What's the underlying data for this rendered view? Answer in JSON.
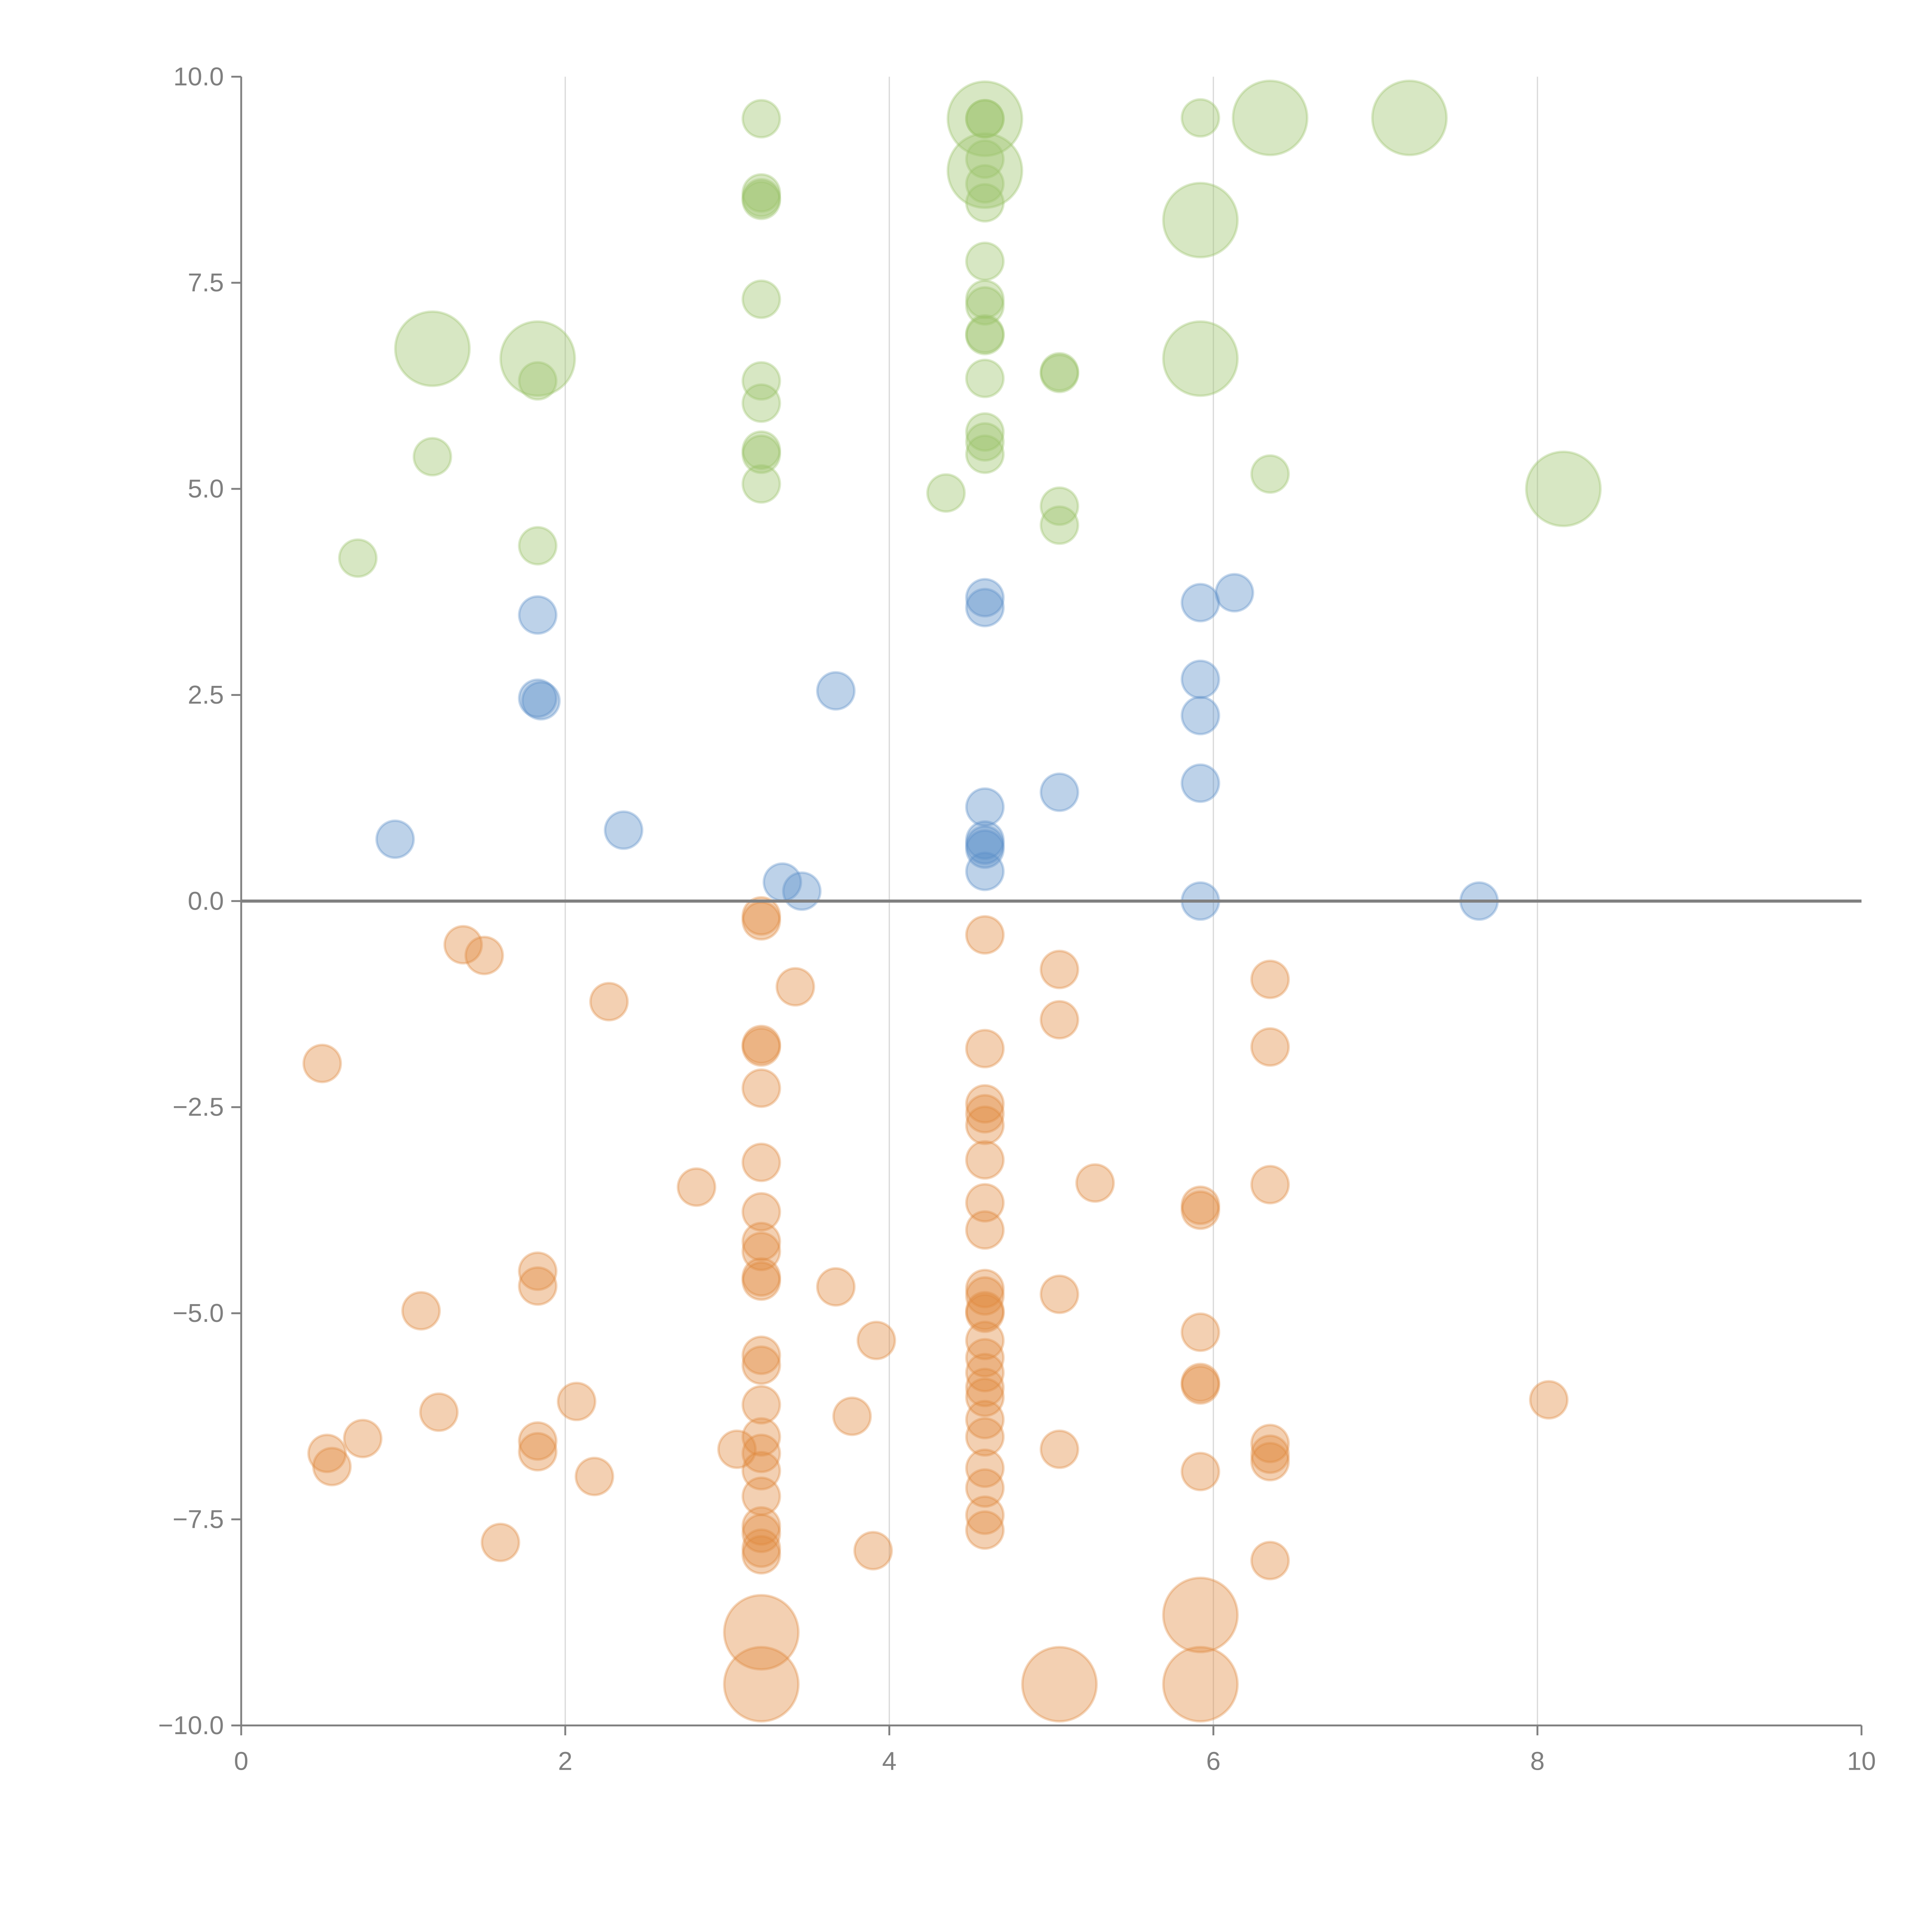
{
  "chart_data": {
    "type": "scatter",
    "title": "",
    "xlabel": "",
    "ylabel": "",
    "xlim": [
      0,
      10
    ],
    "ylim": [
      -10,
      10
    ],
    "grid": "vertical",
    "x_ticks": [
      "0",
      "2",
      "4",
      "6",
      "8",
      "10"
    ],
    "x_tick_values": [
      0,
      2,
      4,
      6,
      8,
      10
    ],
    "y_ticks": [
      "10.0",
      "7.5",
      "5.0",
      "2.5",
      "0.0",
      "−2.5",
      "−5.0",
      "−7.5",
      "−10.0"
    ],
    "y_tick_values": [
      10,
      7.5,
      5,
      2.5,
      0,
      -2.5,
      -5,
      -7.5,
      -10
    ],
    "point_format": [
      "x",
      "y",
      "size"
    ],
    "series": [
      {
        "name": "green",
        "color": "#9cc26a",
        "points": [
          [
            1.18,
            6.7,
            4
          ],
          [
            1.83,
            6.58,
            4
          ],
          [
            1.83,
            6.31,
            1
          ],
          [
            1.18,
            5.39,
            1
          ],
          [
            0.72,
            4.16,
            1
          ],
          [
            1.83,
            4.31,
            1
          ],
          [
            3.21,
            9.49,
            1
          ],
          [
            3.21,
            8.59,
            1
          ],
          [
            3.21,
            8.53,
            1
          ],
          [
            3.21,
            8.5,
            1
          ],
          [
            3.21,
            7.3,
            1
          ],
          [
            3.21,
            6.31,
            1
          ],
          [
            3.21,
            6.04,
            1
          ],
          [
            3.21,
            5.47,
            1
          ],
          [
            3.21,
            5.42,
            1
          ],
          [
            3.21,
            5.06,
            1
          ],
          [
            4.35,
            4.95,
            1
          ],
          [
            4.59,
            9.49,
            4
          ],
          [
            4.59,
            9.49,
            1
          ],
          [
            4.59,
            9.49,
            1
          ],
          [
            4.59,
            8.86,
            4
          ],
          [
            4.59,
            9.0,
            1
          ],
          [
            4.59,
            8.7,
            1
          ],
          [
            4.59,
            8.47,
            1
          ],
          [
            4.59,
            7.76,
            1
          ],
          [
            4.59,
            7.3,
            1
          ],
          [
            4.59,
            7.22,
            1
          ],
          [
            4.59,
            6.86,
            1
          ],
          [
            4.59,
            6.88,
            1
          ],
          [
            4.59,
            6.34,
            1
          ],
          [
            4.59,
            5.69,
            1
          ],
          [
            4.59,
            5.57,
            1
          ],
          [
            4.59,
            5.42,
            1
          ],
          [
            5.05,
            6.42,
            1
          ],
          [
            5.05,
            6.4,
            1
          ],
          [
            5.05,
            4.79,
            1
          ],
          [
            5.05,
            4.56,
            1
          ],
          [
            5.92,
            9.5,
            1
          ],
          [
            5.92,
            8.26,
            4
          ],
          [
            5.92,
            6.58,
            4
          ],
          [
            6.35,
            9.5,
            4
          ],
          [
            6.35,
            5.18,
            1
          ],
          [
            7.21,
            9.5,
            4
          ],
          [
            8.16,
            5.0,
            4
          ]
        ]
      },
      {
        "name": "blue",
        "color": "#5b8ec8",
        "points": [
          [
            1.83,
            3.47,
            1
          ],
          [
            1.83,
            2.46,
            1
          ],
          [
            1.85,
            2.43,
            1
          ],
          [
            0.95,
            0.75,
            1
          ],
          [
            2.36,
            0.86,
            1
          ],
          [
            3.67,
            2.55,
            1
          ],
          [
            3.34,
            0.23,
            1
          ],
          [
            3.46,
            0.12,
            1
          ],
          [
            4.59,
            3.68,
            1
          ],
          [
            4.59,
            3.56,
            1
          ],
          [
            4.59,
            1.14,
            1
          ],
          [
            4.59,
            0.74,
            1
          ],
          [
            4.59,
            0.63,
            1
          ],
          [
            4.59,
            0.68,
            1
          ],
          [
            4.59,
            0.36,
            1
          ],
          [
            5.05,
            1.32,
            1
          ],
          [
            5.92,
            3.62,
            1
          ],
          [
            5.92,
            2.69,
            1
          ],
          [
            5.92,
            2.25,
            1
          ],
          [
            5.92,
            1.43,
            1
          ],
          [
            5.92,
            0.0,
            1
          ],
          [
            6.13,
            3.74,
            1
          ],
          [
            7.64,
            0.0,
            1
          ]
        ]
      },
      {
        "name": "orange",
        "color": "#e08a3e",
        "points": [
          [
            0.5,
            -1.97,
            1
          ],
          [
            1.37,
            -0.53,
            1
          ],
          [
            1.5,
            -0.66,
            1
          ],
          [
            2.27,
            -1.22,
            1
          ],
          [
            2.81,
            -3.47,
            1
          ],
          [
            3.21,
            -0.18,
            1
          ],
          [
            3.21,
            -0.24,
            1
          ],
          [
            3.42,
            -1.04,
            1
          ],
          [
            3.21,
            -1.74,
            1
          ],
          [
            3.21,
            -1.77,
            1
          ],
          [
            3.21,
            -2.27,
            1
          ],
          [
            3.21,
            -3.17,
            1
          ],
          [
            3.21,
            -3.77,
            1
          ],
          [
            3.21,
            -4.13,
            1
          ],
          [
            3.21,
            -4.25,
            1
          ],
          [
            3.21,
            -4.56,
            1
          ],
          [
            3.21,
            -4.61,
            1
          ],
          [
            3.21,
            -5.51,
            1
          ],
          [
            3.21,
            -5.63,
            1
          ],
          [
            3.21,
            -6.11,
            1
          ],
          [
            3.21,
            -6.5,
            1
          ],
          [
            3.21,
            -6.7,
            1
          ],
          [
            3.21,
            -6.91,
            1
          ],
          [
            3.21,
            -7.22,
            1
          ],
          [
            3.21,
            -7.58,
            1
          ],
          [
            3.21,
            -7.67,
            1
          ],
          [
            3.21,
            -7.85,
            1
          ],
          [
            3.21,
            -7.93,
            1
          ],
          [
            3.21,
            -8.87,
            4
          ],
          [
            3.21,
            -9.5,
            4
          ],
          [
            3.06,
            -6.65,
            1
          ],
          [
            1.83,
            -4.49,
            1
          ],
          [
            1.83,
            -4.67,
            1
          ],
          [
            1.83,
            -6.55,
            1
          ],
          [
            1.83,
            -6.68,
            1
          ],
          [
            1.11,
            -4.97,
            1
          ],
          [
            1.22,
            -6.2,
            1
          ],
          [
            0.75,
            -6.52,
            1
          ],
          [
            0.53,
            -6.7,
            1
          ],
          [
            0.56,
            -6.86,
            1
          ],
          [
            1.6,
            -7.78,
            1
          ],
          [
            2.07,
            -6.07,
            1
          ],
          [
            2.18,
            -6.98,
            1
          ],
          [
            3.67,
            -4.68,
            1
          ],
          [
            3.92,
            -5.33,
            1
          ],
          [
            3.77,
            -6.25,
            1
          ],
          [
            3.9,
            -7.88,
            1
          ],
          [
            4.59,
            -0.41,
            1
          ],
          [
            4.59,
            -1.79,
            1
          ],
          [
            4.59,
            -2.46,
            1
          ],
          [
            4.59,
            -2.58,
            1
          ],
          [
            4.59,
            -2.72,
            1
          ],
          [
            4.59,
            -3.14,
            1
          ],
          [
            4.59,
            -3.66,
            1
          ],
          [
            4.59,
            -3.99,
            1
          ],
          [
            4.59,
            -4.7,
            1
          ],
          [
            4.59,
            -4.79,
            1
          ],
          [
            4.59,
            -4.97,
            1
          ],
          [
            4.59,
            -5.0,
            1
          ],
          [
            4.59,
            -5.33,
            1
          ],
          [
            4.59,
            -5.54,
            1
          ],
          [
            4.59,
            -5.72,
            1
          ],
          [
            4.59,
            -5.9,
            1
          ],
          [
            4.59,
            -6.02,
            1
          ],
          [
            4.59,
            -6.29,
            1
          ],
          [
            4.59,
            -6.5,
            1
          ],
          [
            4.59,
            -6.88,
            1
          ],
          [
            4.59,
            -7.12,
            1
          ],
          [
            4.59,
            -7.45,
            1
          ],
          [
            4.59,
            -7.63,
            1
          ],
          [
            5.05,
            -0.83,
            1
          ],
          [
            5.05,
            -1.44,
            1
          ],
          [
            5.05,
            -4.77,
            1
          ],
          [
            5.05,
            -6.65,
            1
          ],
          [
            5.05,
            -9.5,
            4
          ],
          [
            5.27,
            -3.42,
            1
          ],
          [
            5.92,
            -3.69,
            1
          ],
          [
            5.92,
            -3.75,
            1
          ],
          [
            5.92,
            -5.23,
            1
          ],
          [
            5.92,
            -5.84,
            1
          ],
          [
            5.92,
            -5.87,
            1
          ],
          [
            5.92,
            -6.92,
            1
          ],
          [
            5.92,
            -8.66,
            4
          ],
          [
            5.92,
            -9.5,
            4
          ],
          [
            6.35,
            -0.95,
            1
          ],
          [
            6.35,
            -1.77,
            1
          ],
          [
            6.35,
            -3.44,
            1
          ],
          [
            6.35,
            -6.58,
            1
          ],
          [
            6.35,
            -6.71,
            1
          ],
          [
            6.35,
            -6.8,
            1
          ],
          [
            6.35,
            -8.0,
            1
          ],
          [
            8.07,
            -6.05,
            1
          ]
        ]
      }
    ]
  }
}
